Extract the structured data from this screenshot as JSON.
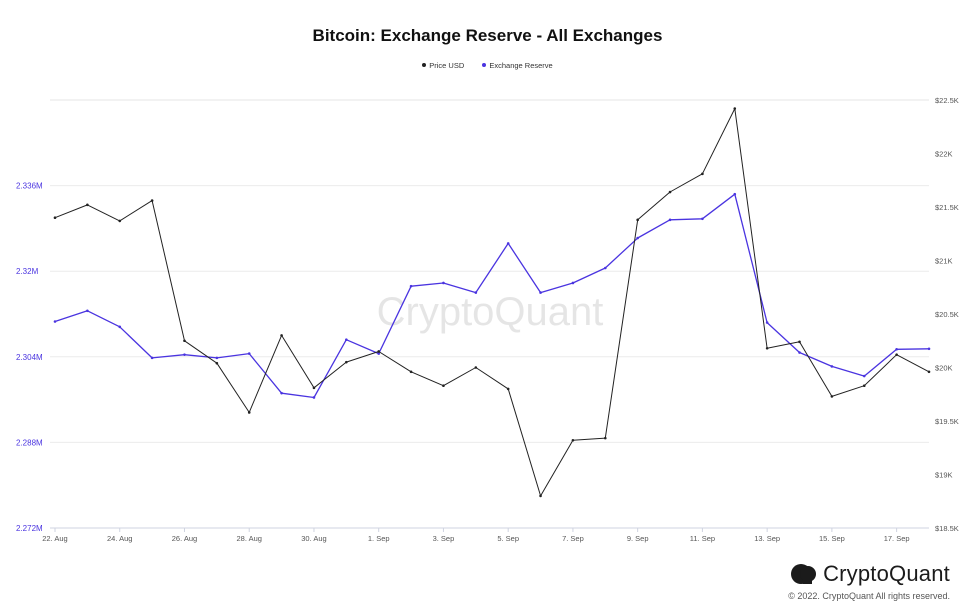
{
  "chart_data": {
    "type": "line",
    "title": "Bitcoin: Exchange Reserve - All Exchanges",
    "legend": {
      "placement": "top-center",
      "items": [
        {
          "label": "Price USD",
          "color": "#222222"
        },
        {
          "label": "Exchange Reserve",
          "color": "#4a34e0"
        }
      ]
    },
    "x": [
      "22 Aug",
      "23 Aug",
      "24 Aug",
      "25 Aug",
      "26 Aug",
      "27 Aug",
      "28 Aug",
      "29 Aug",
      "30 Aug",
      "31 Aug",
      "1 Sep",
      "2 Sep",
      "3 Sep",
      "4 Sep",
      "5 Sep",
      "6 Sep",
      "7 Sep",
      "8 Sep",
      "9 Sep",
      "10 Sep",
      "11 Sep",
      "12 Sep",
      "13 Sep",
      "14 Sep",
      "15 Sep",
      "16 Sep",
      "17 Sep",
      "18 Sep"
    ],
    "x_tick_labels": [
      "22. Aug",
      "24. Aug",
      "26. Aug",
      "28. Aug",
      "30. Aug",
      "1. Sep",
      "3. Sep",
      "5. Sep",
      "7. Sep",
      "9. Sep",
      "11. Sep",
      "13. Sep",
      "15. Sep",
      "17. Sep"
    ],
    "x_tick_indices": [
      0,
      2,
      4,
      6,
      8,
      10,
      12,
      14,
      16,
      18,
      20,
      22,
      24,
      26
    ],
    "series": [
      {
        "name": "Exchange Reserve",
        "axis": "left",
        "color": "#4a34e0",
        "values": [
          2.3106,
          2.3126,
          2.3096,
          2.3038,
          2.3044,
          2.3038,
          2.3046,
          2.2972,
          2.2964,
          2.3072,
          2.3046,
          2.3172,
          2.3178,
          2.316,
          2.3252,
          2.316,
          2.3178,
          2.3206,
          2.3262,
          2.3296,
          2.3298,
          2.3344,
          2.3104,
          2.3048,
          2.3022,
          2.3004,
          2.3054,
          2.3055
        ]
      },
      {
        "name": "Price USD",
        "axis": "right",
        "color": "#222222",
        "values": [
          21400,
          21520,
          21370,
          21560,
          20250,
          20040,
          19580,
          20300,
          19810,
          20050,
          20150,
          19960,
          19830,
          20000,
          19800,
          18800,
          19320,
          19340,
          21380,
          21640,
          21810,
          22420,
          20180,
          20240,
          19730,
          19830,
          20120,
          19960
        ]
      }
    ],
    "y_left": {
      "ylim": [
        2.272,
        2.352
      ],
      "ticks": [
        2.272,
        2.288,
        2.304,
        2.32,
        2.336
      ],
      "tick_labels": [
        "2.272M",
        "2.288M",
        "2.304M",
        "2.32M",
        "2.336M"
      ],
      "color": "#4a34e0"
    },
    "y_right": {
      "ylim": [
        18500,
        22500
      ],
      "ticks": [
        18500,
        19000,
        19500,
        20000,
        20500,
        21000,
        21500,
        22000,
        22500
      ],
      "tick_labels": [
        "$18.5K",
        "$19K",
        "$19.5K",
        "$20K",
        "$20.5K",
        "$21K",
        "$21.5K",
        "$22K",
        "$22.5K"
      ],
      "color": "#555555"
    },
    "grid": true,
    "watermark": "CryptoQuant"
  },
  "footer": {
    "brand": "CryptoQuant",
    "copyright": "© 2022. CryptoQuant All rights reserved."
  }
}
